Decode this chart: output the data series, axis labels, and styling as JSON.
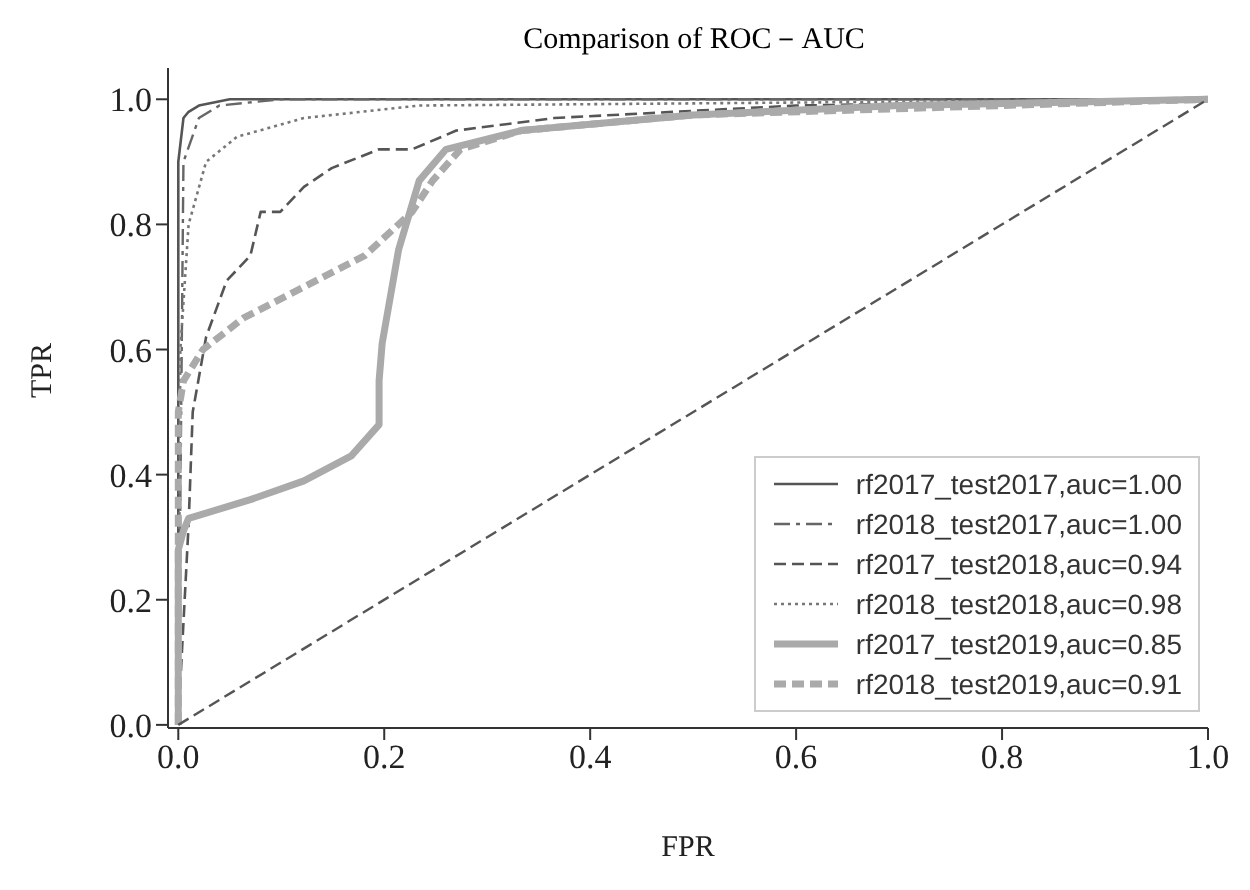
{
  "chart_data": {
    "type": "line",
    "title": "Comparison of ROC－AUC",
    "xlabel": "FPR",
    "ylabel": "TPR",
    "xlim": [
      -0.01,
      1.0
    ],
    "ylim": [
      -0.005,
      1.05
    ],
    "xticks": [
      {
        "value": 0,
        "label": "0.0"
      },
      0.2,
      0.4,
      0.6,
      0.8,
      {
        "value": 1,
        "label": "1.0"
      }
    ],
    "yticks": [
      {
        "value": 0,
        "label": "0.0"
      },
      0.2,
      0.4,
      0.6,
      0.8,
      {
        "value": 1,
        "label": "1.0"
      }
    ],
    "legend": "bottom right",
    "marker": "none",
    "series": [
      {
        "name": "rf2017_test2017,auc=1.00",
        "color": "#555555",
        "line_style": "solid",
        "x": [
          0,
          0,
          0.005,
          0.01,
          0.02,
          0.05,
          1
        ],
        "values": [
          0,
          0.9,
          0.97,
          0.98,
          0.99,
          1.0,
          1.0
        ]
      },
      {
        "name": "rf2018_test2017,auc=1.00",
        "color": "#666666",
        "line_style": "dashdot",
        "x": [
          0,
          0.005,
          0.02,
          0.04,
          0.1,
          1
        ],
        "values": [
          0,
          0.9,
          0.97,
          0.99,
          1.0,
          1.0
        ]
      },
      {
        "name": "rf2017_test2018,auc=0.94",
        "color": "#555555",
        "line_style": "dashed",
        "x": [
          0,
          0.003,
          0.01,
          0.014,
          0.027,
          0.047,
          0.07,
          0.08,
          0.099,
          0.122,
          0.149,
          0.195,
          0.227,
          0.27,
          0.365,
          0.6,
          1
        ],
        "values": [
          0,
          0.1,
          0.32,
          0.5,
          0.62,
          0.71,
          0.75,
          0.82,
          0.82,
          0.86,
          0.89,
          0.92,
          0.92,
          0.95,
          0.97,
          0.99,
          1.0
        ]
      },
      {
        "name": "rf2018_test2018,auc=0.98",
        "color": "#777777",
        "line_style": "dotted",
        "x": [
          0,
          0.002,
          0.01,
          0.027,
          0.057,
          0.122,
          0.234,
          1
        ],
        "values": [
          0,
          0.6,
          0.8,
          0.9,
          0.94,
          0.97,
          0.99,
          1.0
        ]
      },
      {
        "name": "rf2017_test2019,auc=0.85",
        "color": "#aaaaaa",
        "line_style": "solid",
        "x": [
          0,
          0,
          0.005,
          0.01,
          0.07,
          0.122,
          0.168,
          0.195,
          0.195,
          0.198,
          0.214,
          0.234,
          0.26,
          0.333,
          0.5,
          0.7,
          1
        ],
        "values": [
          0,
          0.28,
          0.31,
          0.33,
          0.36,
          0.39,
          0.43,
          0.48,
          0.55,
          0.61,
          0.76,
          0.87,
          0.92,
          0.95,
          0.975,
          0.99,
          1.0
        ]
      },
      {
        "name": "rf2018_test2019,auc=0.91",
        "color": "#aaaaaa",
        "line_style": "dashed",
        "x": [
          0,
          0,
          0.005,
          0.024,
          0.063,
          0.122,
          0.181,
          0.227,
          0.247,
          0.274,
          0.333,
          0.5,
          1
        ],
        "values": [
          0,
          0.5,
          0.55,
          0.6,
          0.65,
          0.7,
          0.75,
          0.82,
          0.87,
          0.92,
          0.95,
          0.975,
          1.0
        ]
      },
      {
        "color": "#555555",
        "line_style": "dashed",
        "x": [
          0,
          1
        ],
        "values": [
          0,
          1
        ]
      }
    ]
  }
}
